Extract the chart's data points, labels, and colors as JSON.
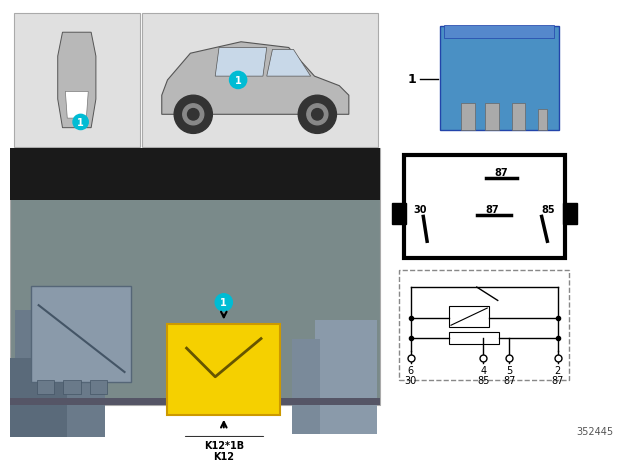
{
  "bg_color": "#ffffff",
  "light_gray": "#e8e8e8",
  "dark_gray": "#404040",
  "mid_gray": "#999999",
  "teal": "#00bcd4",
  "yellow": "#f5d000",
  "blue_relay": "#4a90c4",
  "label_font_size": 7,
  "part_number": "352445",
  "circuit_pins": [
    "6",
    "4",
    "5",
    "2"
  ],
  "circuit_labels": [
    "30",
    "85",
    "87",
    "87"
  ],
  "k_label1": "K12",
  "k_label2": "K12*1B",
  "item_number": "1",
  "top_box_color": "#e0e0e0",
  "engine_bg": "#7a8a8a",
  "hood_color": "#1a1a1a",
  "gray_box_color": "#8a9aaa",
  "blue_connector": "#3a5aaa",
  "car_body_color": "#b8b8b8",
  "wheel_color": "#333333",
  "window_color": "#c8d8e8"
}
